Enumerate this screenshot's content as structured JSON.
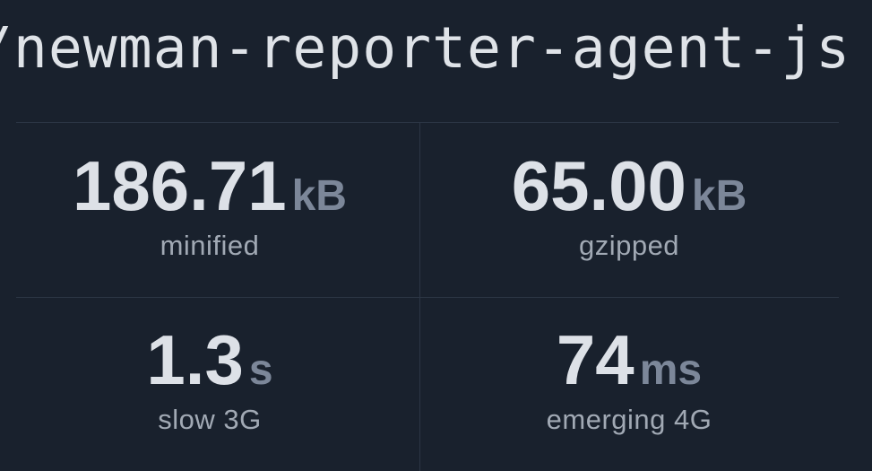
{
  "package_name": "/newman-reporter-agent-js",
  "stats": [
    {
      "value": "186.71",
      "unit": "kB",
      "label": "minified"
    },
    {
      "value": "65.00",
      "unit": "kB",
      "label": "gzipped"
    },
    {
      "value": "1.3",
      "unit": "s",
      "label": "slow 3G"
    },
    {
      "value": "74",
      "unit": "ms",
      "label": "emerging 4G"
    }
  ]
}
